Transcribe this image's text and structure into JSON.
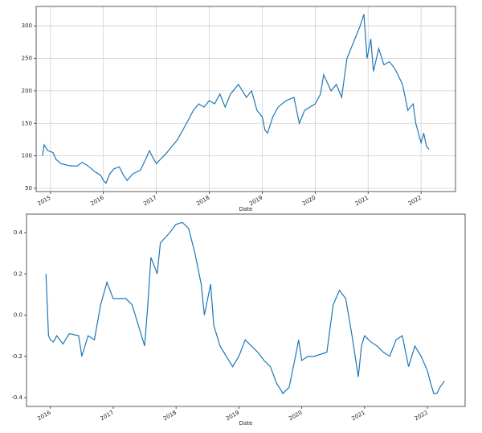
{
  "chart_data": [
    {
      "type": "line",
      "xlabel": "Date",
      "grid": true,
      "xlim": [
        2014.73,
        2022.65
      ],
      "xticks": [
        2015,
        2016,
        2017,
        2018,
        2019,
        2020,
        2021,
        2022
      ],
      "ylim": [
        45,
        330
      ],
      "yticks": [
        50,
        100,
        150,
        200,
        250,
        300
      ],
      "x": [
        2014.85,
        2014.88,
        2014.95,
        2015.05,
        2015.1,
        2015.2,
        2015.35,
        2015.5,
        2015.6,
        2015.7,
        2015.85,
        2015.95,
        2016.0,
        2016.05,
        2016.12,
        2016.2,
        2016.3,
        2016.38,
        2016.45,
        2016.55,
        2016.7,
        2016.8,
        2016.87,
        2016.93,
        2017.0,
        2017.2,
        2017.4,
        2017.57,
        2017.7,
        2017.8,
        2017.9,
        2018.0,
        2018.1,
        2018.2,
        2018.3,
        2018.4,
        2018.55,
        2018.7,
        2018.8,
        2018.9,
        2019.0,
        2019.05,
        2019.1,
        2019.2,
        2019.3,
        2019.45,
        2019.6,
        2019.7,
        2019.8,
        2019.9,
        2020.0,
        2020.1,
        2020.16,
        2020.3,
        2020.4,
        2020.5,
        2020.6,
        2020.7,
        2020.8,
        2020.85,
        2020.92,
        2020.98,
        2021.05,
        2021.1,
        2021.2,
        2021.3,
        2021.4,
        2021.5,
        2021.65,
        2021.75,
        2021.85,
        2021.9,
        2022.0,
        2022.05,
        2022.1,
        2022.15
      ],
      "series": [
        {
          "color": "#1f77b4",
          "values": [
            100,
            117,
            108,
            105,
            95,
            88,
            85,
            84,
            90,
            85,
            75,
            70,
            62,
            58,
            72,
            80,
            83,
            70,
            62,
            72,
            78,
            95,
            108,
            98,
            88,
            105,
            125,
            150,
            170,
            180,
            175,
            185,
            180,
            195,
            175,
            195,
            210,
            190,
            200,
            170,
            160,
            140,
            135,
            160,
            175,
            185,
            190,
            150,
            170,
            175,
            180,
            195,
            225,
            200,
            210,
            190,
            250,
            270,
            290,
            300,
            318,
            250,
            280,
            230,
            265,
            240,
            245,
            235,
            210,
            170,
            180,
            150,
            120,
            135,
            115,
            110
          ]
        }
      ]
    },
    {
      "type": "line",
      "xlabel": "Date",
      "grid": false,
      "xlim": [
        2015.62,
        2022.6
      ],
      "xticks": [
        2016,
        2017,
        2018,
        2019,
        2020,
        2021,
        2022
      ],
      "ylim": [
        -0.443,
        0.49
      ],
      "yticks": [
        -0.4,
        -0.2,
        {
          "value": 0,
          "label": "0.0"
        },
        0.2,
        0.4
      ],
      "x": [
        2015.93,
        2015.97,
        2016.0,
        2016.05,
        2016.1,
        2016.2,
        2016.3,
        2016.45,
        2016.5,
        2016.6,
        2016.7,
        2016.8,
        2016.9,
        2017.0,
        2017.2,
        2017.3,
        2017.4,
        2017.5,
        2017.55,
        2017.6,
        2017.7,
        2017.75,
        2017.9,
        2018.0,
        2018.1,
        2018.2,
        2018.3,
        2018.4,
        2018.45,
        2018.55,
        2018.6,
        2018.7,
        2018.8,
        2018.9,
        2019.0,
        2019.1,
        2019.2,
        2019.3,
        2019.4,
        2019.5,
        2019.6,
        2019.7,
        2019.8,
        2019.9,
        2019.95,
        2020.0,
        2020.1,
        2020.2,
        2020.4,
        2020.5,
        2020.6,
        2020.7,
        2020.8,
        2020.9,
        2020.95,
        2021.0,
        2021.1,
        2021.2,
        2021.3,
        2021.4,
        2021.5,
        2021.6,
        2021.7,
        2021.8,
        2021.9,
        2022.0,
        2022.05,
        2022.1,
        2022.15,
        2022.2,
        2022.27
      ],
      "series": [
        {
          "color": "#1f77b4",
          "values": [
            0.2,
            -0.1,
            -0.12,
            -0.13,
            -0.1,
            -0.14,
            -0.09,
            -0.1,
            -0.2,
            -0.1,
            -0.12,
            0.05,
            0.16,
            0.08,
            0.08,
            0.05,
            -0.05,
            -0.15,
            0.05,
            0.28,
            0.2,
            0.35,
            0.4,
            0.44,
            0.45,
            0.42,
            0.3,
            0.15,
            0.0,
            0.15,
            -0.05,
            -0.15,
            -0.2,
            -0.25,
            -0.2,
            -0.12,
            -0.15,
            -0.18,
            -0.22,
            -0.25,
            -0.33,
            -0.38,
            -0.35,
            -0.2,
            -0.12,
            -0.22,
            -0.2,
            -0.2,
            -0.18,
            0.05,
            0.12,
            0.08,
            -0.1,
            -0.3,
            -0.15,
            -0.1,
            -0.13,
            -0.15,
            -0.18,
            -0.2,
            -0.12,
            -0.1,
            -0.25,
            -0.15,
            -0.2,
            -0.27,
            -0.33,
            -0.38,
            -0.38,
            -0.35,
            -0.32
          ]
        }
      ]
    }
  ]
}
